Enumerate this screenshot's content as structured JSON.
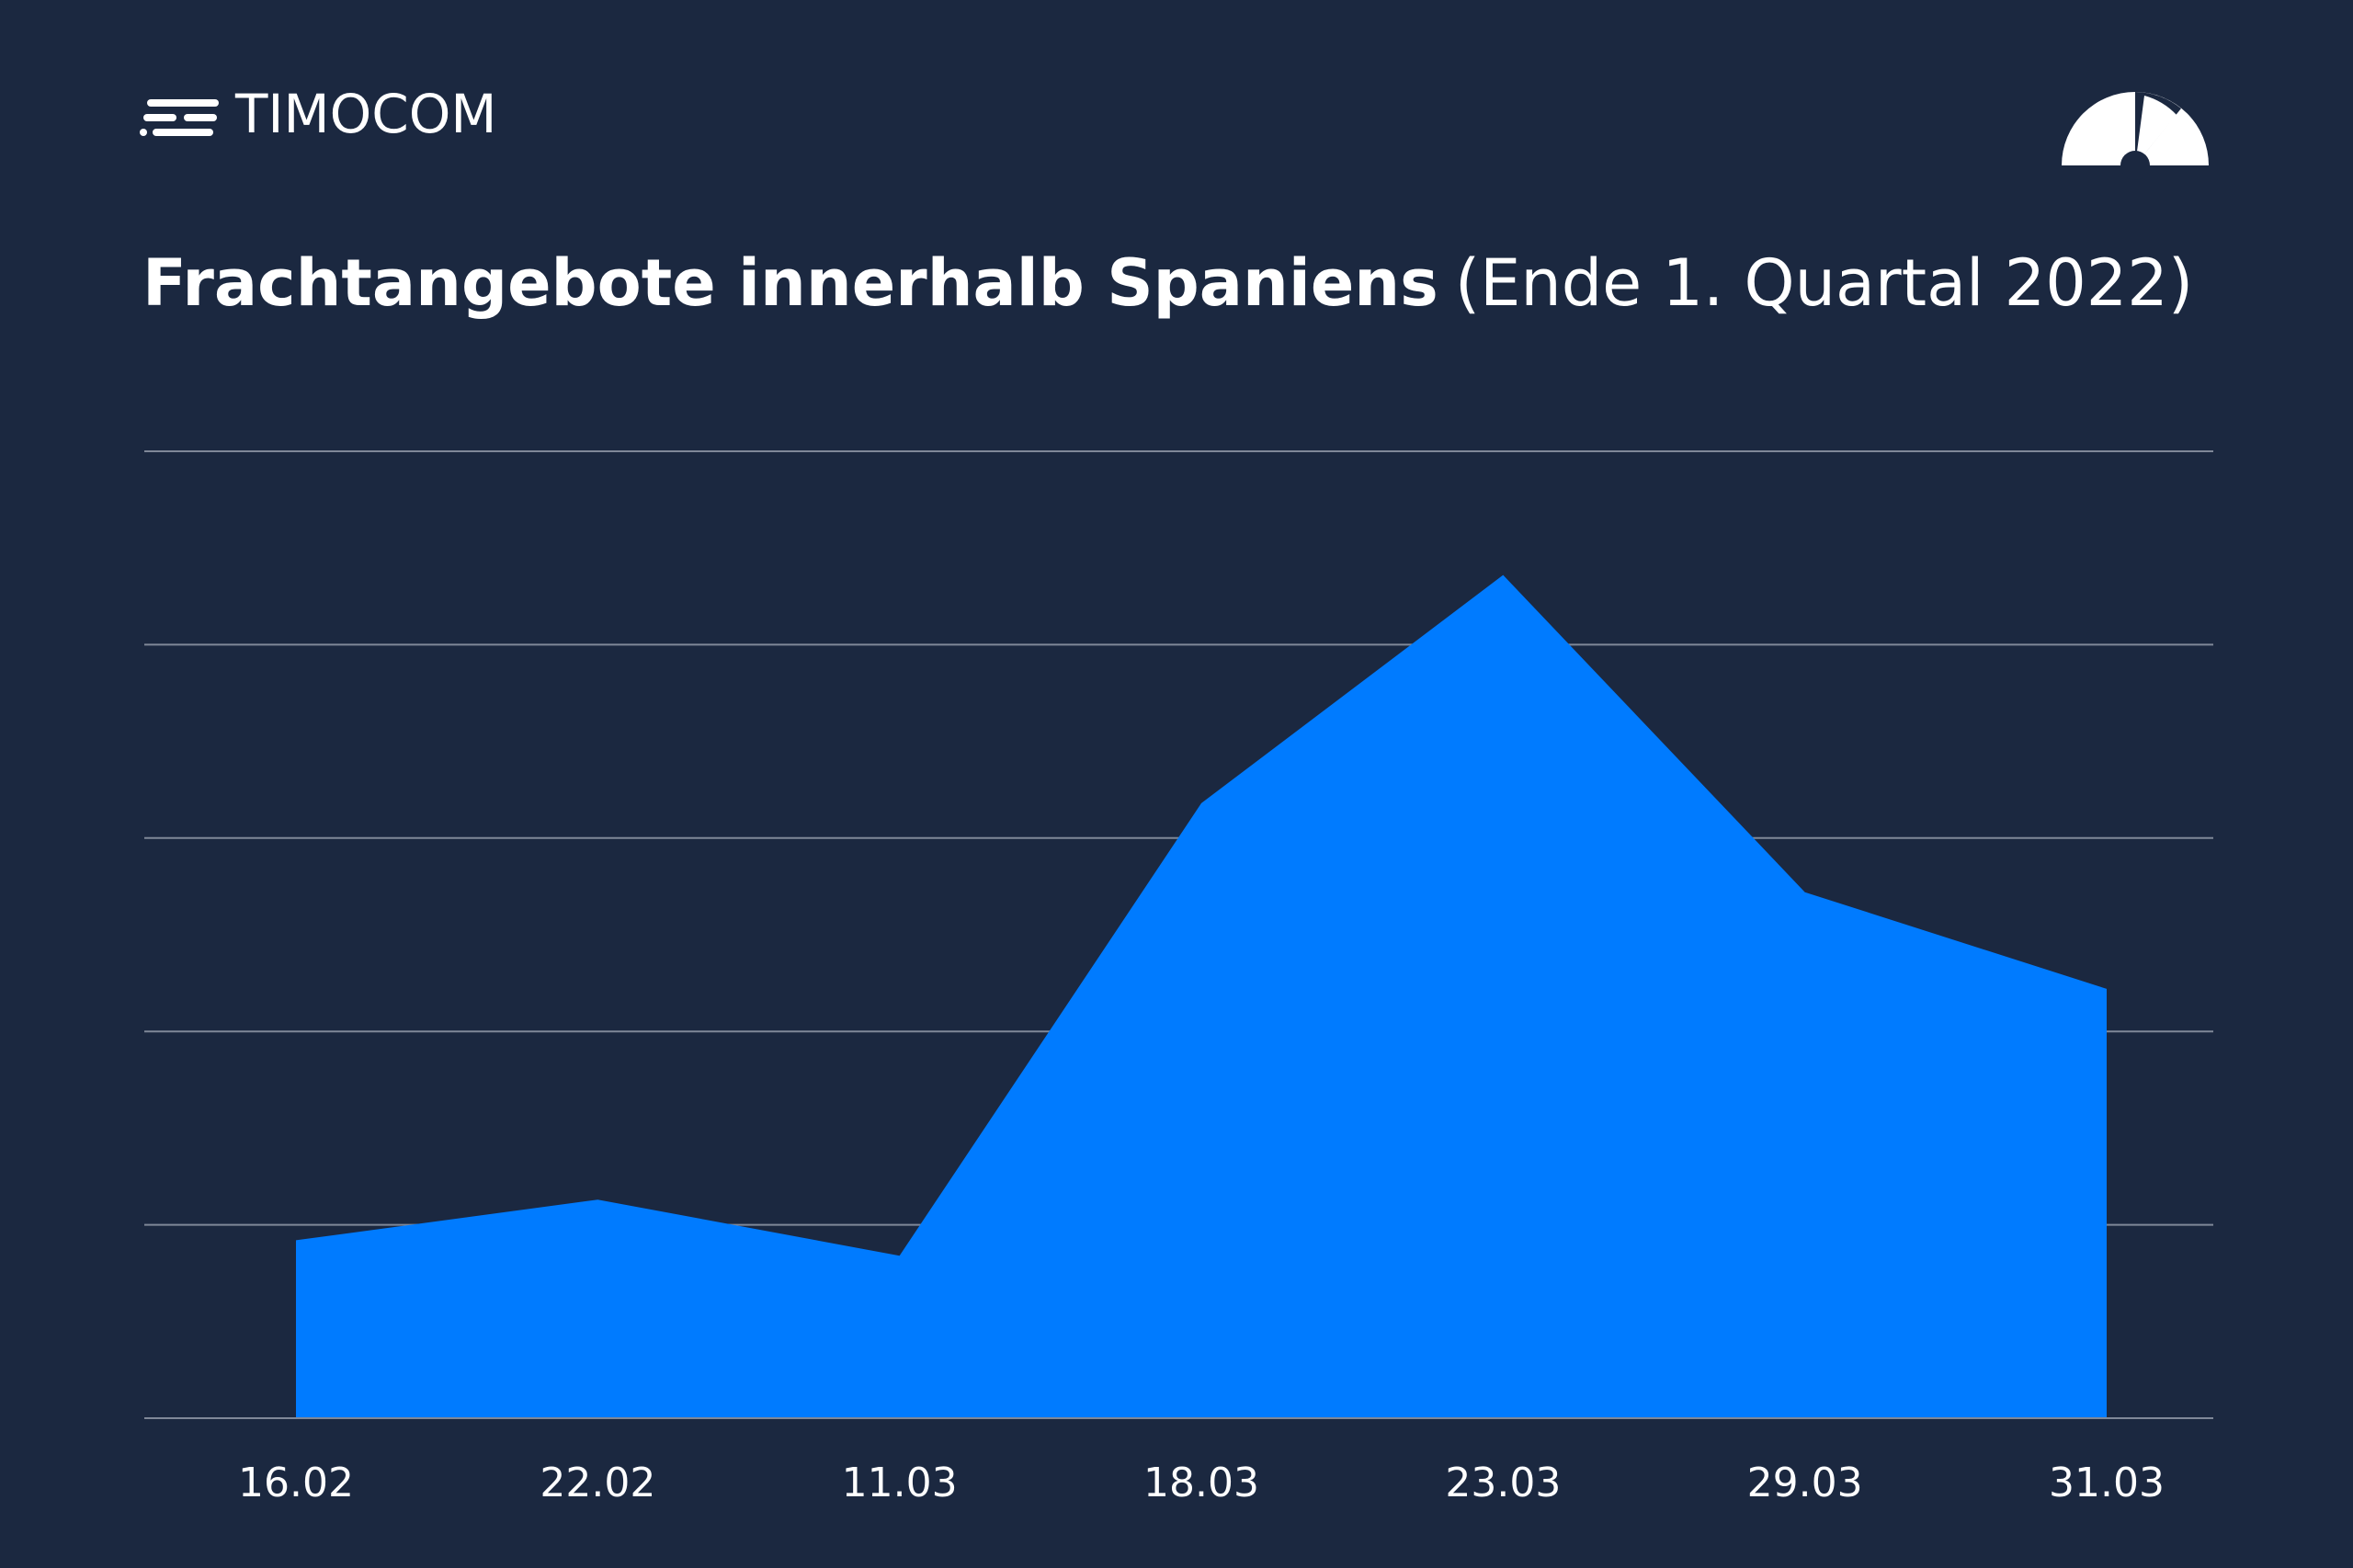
{
  "brand": "TIMOCOM",
  "chart_data": {
    "type": "area",
    "title": "Frachtangebote innerhalb Spaniens",
    "subtitle": "(Ende 1. Quartal 2022)",
    "categories": [
      "16.02",
      "22.02",
      "11.03",
      "18.03",
      "23.03",
      "29.03",
      "31.03"
    ],
    "values": [
      0.92,
      1.13,
      0.84,
      3.18,
      4.36,
      2.72,
      2.22
    ],
    "color": "#007bff",
    "ylim": [
      0,
      5
    ],
    "yticks": [
      0,
      1,
      2,
      3,
      4,
      5
    ],
    "grid": true
  }
}
